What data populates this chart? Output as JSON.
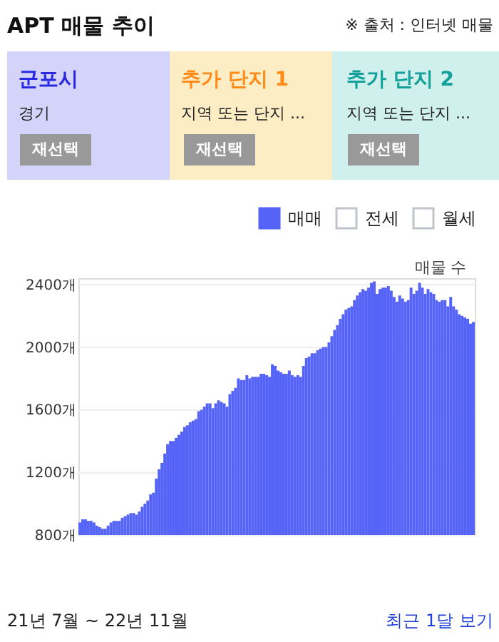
{
  "chart_data": {
    "type": "bar",
    "title": "APT 매물 추이",
    "ylabel": "매물 수",
    "annotations": [
      "※ 출처 : 인터넷 매물",
      "군포시",
      "경기",
      "재선택",
      "추가 단지 1",
      "지역 또는 단지 ...",
      "재선택",
      "추가 단지 2",
      "지역 또는 단지 ...",
      "재선택",
      "21년 7월 ~ 22년 11월",
      "최근 1달 보기"
    ],
    "categories": [
      null,
      null,
      null,
      null,
      null,
      null,
      null,
      null,
      null,
      null,
      null,
      null,
      null,
      null,
      null,
      null,
      null,
      null,
      null,
      null,
      null,
      null,
      null,
      null,
      null,
      null,
      null,
      null,
      null,
      null,
      null,
      null,
      null,
      null,
      null,
      null,
      null,
      null,
      null,
      null,
      null,
      null,
      null,
      null,
      null,
      null,
      null,
      null,
      null,
      null,
      null,
      null,
      null,
      null,
      null,
      null,
      null,
      null,
      null,
      null,
      null,
      null,
      null,
      null,
      null,
      null,
      null,
      null,
      null,
      null,
      null,
      null,
      null,
      null,
      null,
      null,
      null,
      null,
      null,
      null,
      null,
      null,
      null,
      null,
      null,
      null,
      null,
      null,
      null,
      null,
      null,
      null,
      null,
      null,
      null,
      null,
      null,
      null,
      null,
      null,
      null,
      null,
      null,
      null,
      null,
      null,
      null,
      null,
      null,
      null,
      null,
      null,
      null,
      null,
      null,
      null,
      null,
      null,
      null,
      null,
      null,
      null,
      null,
      null,
      null,
      null,
      null,
      null,
      null,
      null,
      null,
      null,
      null,
      null,
      null,
      null,
      null,
      null,
      null,
      null
    ],
    "series": [
      {
        "name": "매매",
        "color": "#5563f7",
        "values": [
          880,
          900,
          900,
          890,
          890,
          880,
          860,
          850,
          840,
          840,
          860,
          880,
          890,
          890,
          890,
          910,
          920,
          930,
          940,
          940,
          930,
          950,
          980,
          1000,
          1020,
          1060,
          1070,
          1160,
          1220,
          1260,
          1320,
          1380,
          1400,
          1400,
          1420,
          1440,
          1460,
          1490,
          1500,
          1520,
          1530,
          1540,
          1590,
          1600,
          1620,
          1640,
          1640,
          1610,
          1640,
          1660,
          1650,
          1640,
          1620,
          1700,
          1720,
          1740,
          1800,
          1790,
          1790,
          1820,
          1800,
          1810,
          1810,
          1810,
          1830,
          1830,
          1820,
          1810,
          1890,
          1880,
          1850,
          1840,
          1830,
          1830,
          1850,
          1820,
          1810,
          1820,
          1810,
          1880,
          1930,
          1940,
          1960,
          1960,
          1980,
          1990,
          2000,
          2000,
          2030,
          2070,
          2110,
          2140,
          2180,
          2210,
          2240,
          2250,
          2260,
          2300,
          2330,
          2350,
          2370,
          2360,
          2380,
          2410,
          2420,
          2340,
          2370,
          2380,
          2380,
          2390,
          2360,
          2320,
          2290,
          2330,
          2310,
          2290,
          2300,
          2380,
          2340,
          2360,
          2410,
          2380,
          2340,
          2370,
          2350,
          2340,
          2300,
          2290,
          2300,
          2300,
          2260,
          2320,
          2260,
          2240,
          2210,
          2200,
          2190,
          2180,
          2150,
          2160
        ]
      },
      {
        "name": "전세",
        "color": "#ffffff",
        "values": [
          null,
          null,
          null,
          null,
          null,
          null,
          null,
          null,
          null,
          null,
          null,
          null,
          null,
          null,
          null,
          null,
          null,
          null,
          null,
          null,
          null,
          null,
          null,
          null,
          null,
          null,
          null,
          null,
          null,
          null,
          null,
          null,
          null,
          null,
          null,
          null,
          null,
          null,
          null,
          null,
          null,
          null,
          null,
          null,
          null,
          null,
          null,
          null,
          null,
          null,
          null,
          null,
          null,
          null,
          null,
          null,
          null,
          null,
          null,
          null,
          null,
          null,
          null,
          null,
          null,
          null,
          null,
          null,
          null,
          null,
          null,
          null,
          null,
          null,
          null,
          null,
          null,
          null,
          null,
          null,
          null,
          null,
          null,
          null,
          null,
          null,
          null,
          null,
          null,
          null,
          null,
          null,
          null,
          null,
          null,
          null,
          null,
          null,
          null,
          null,
          null,
          null,
          null,
          null,
          null,
          null,
          null,
          null,
          null,
          null,
          null,
          null,
          null,
          null,
          null,
          null,
          null,
          null,
          null,
          null,
          null,
          null,
          null,
          null,
          null,
          null,
          null,
          null,
          null,
          null,
          null,
          null,
          null,
          null,
          null,
          null,
          null,
          null,
          null,
          null
        ]
      },
      {
        "name": "월세",
        "color": "#ffffff",
        "values": [
          null,
          null,
          null,
          null,
          null,
          null,
          null,
          null,
          null,
          null,
          null,
          null,
          null,
          null,
          null,
          null,
          null,
          null,
          null,
          null,
          null,
          null,
          null,
          null,
          null,
          null,
          null,
          null,
          null,
          null,
          null,
          null,
          null,
          null,
          null,
          null,
          null,
          null,
          null,
          null,
          null,
          null,
          null,
          null,
          null,
          null,
          null,
          null,
          null,
          null,
          null,
          null,
          null,
          null,
          null,
          null,
          null,
          null,
          null,
          null,
          null,
          null,
          null,
          null,
          null,
          null,
          null,
          null,
          null,
          null,
          null,
          null,
          null,
          null,
          null,
          null,
          null,
          null,
          null,
          null,
          null,
          null,
          null,
          null,
          null,
          null,
          null,
          null,
          null,
          null,
          null,
          null,
          null,
          null,
          null,
          null,
          null,
          null,
          null,
          null,
          null,
          null,
          null,
          null,
          null,
          null,
          null,
          null,
          null,
          null,
          null,
          null,
          null,
          null,
          null,
          null,
          null,
          null,
          null,
          null,
          null,
          null,
          null,
          null,
          null,
          null,
          null,
          null,
          null,
          null,
          null,
          null,
          null,
          null,
          null,
          null,
          null,
          null,
          null,
          null
        ]
      }
    ],
    "ylim": [
      800,
      2440
    ],
    "yticks": [
      {
        "value": 800,
        "label": "800개"
      },
      {
        "value": 1200,
        "label": "1200개"
      },
      {
        "value": 1600,
        "label": "1600개"
      },
      {
        "value": 2000,
        "label": "2000개"
      },
      {
        "value": 2400,
        "label": "2400개"
      }
    ],
    "grid": "y",
    "legend": "top right",
    "tick_labels": "y"
  }
}
